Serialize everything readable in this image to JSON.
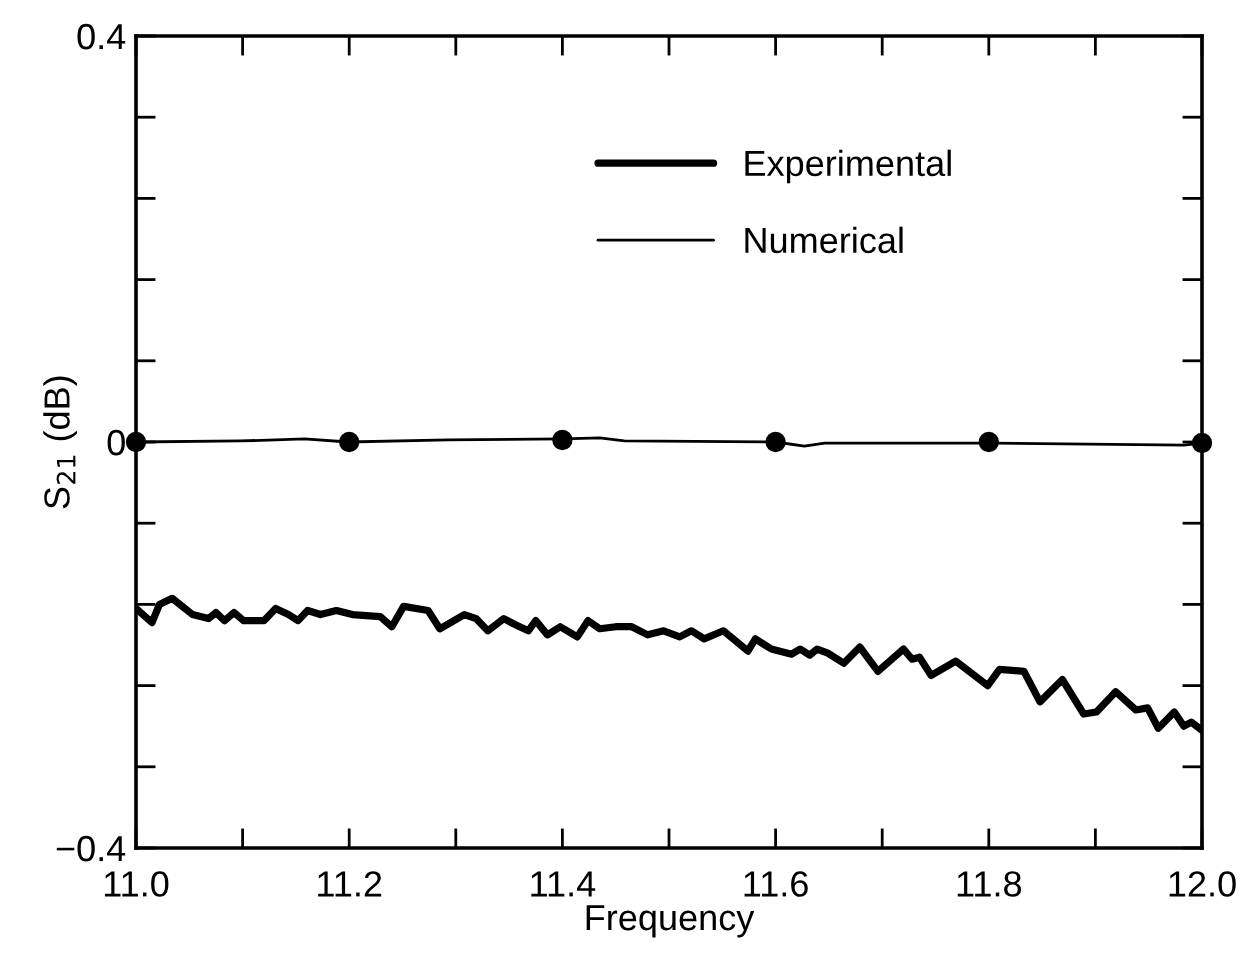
{
  "chart_data": {
    "type": "line",
    "xlabel": "Frequency",
    "ylabel": "S$_{21}$ (dB)",
    "xlim": [
      11.0,
      12.0
    ],
    "ylim": [
      -0.4,
      0.4
    ],
    "xticks": [
      {
        "value": 11.0,
        "label": "11.0"
      },
      {
        "value": 11.1,
        "label": null
      },
      {
        "value": 11.2,
        "label": "11.2"
      },
      {
        "value": 11.3,
        "label": null
      },
      {
        "value": 11.4,
        "label": "11.4"
      },
      {
        "value": 11.5,
        "label": null
      },
      {
        "value": 11.6,
        "label": "11.6"
      },
      {
        "value": 11.7,
        "label": null
      },
      {
        "value": 11.8,
        "label": "11.8"
      },
      {
        "value": 11.9,
        "label": null
      },
      {
        "value": 12.0,
        "label": "12.0"
      }
    ],
    "yticks": [
      {
        "value": -0.4,
        "label": "−0.4"
      },
      {
        "value": -0.32,
        "label": null
      },
      {
        "value": -0.24,
        "label": null
      },
      {
        "value": -0.16,
        "label": null
      },
      {
        "value": -0.08,
        "label": null
      },
      {
        "value": 0,
        "label": "0"
      },
      {
        "value": 0.08,
        "label": null
      },
      {
        "value": 0.16,
        "label": null
      },
      {
        "value": 0.24,
        "label": null
      },
      {
        "value": 0.32,
        "label": null
      },
      {
        "value": 0.4,
        "label": "0.4"
      }
    ],
    "grid": false,
    "legend": "top",
    "marker": "none",
    "line_style": "solid",
    "series": [
      {
        "name": "Experimental",
        "color": "#000000",
        "x": [
          11.0,
          11.015,
          11.022,
          11.034,
          11.053,
          11.068,
          11.075,
          11.083,
          11.092,
          11.101,
          11.12,
          11.131,
          11.143,
          11.152,
          11.161,
          11.173,
          11.188,
          11.203,
          11.229,
          11.24,
          11.251,
          11.274,
          11.285,
          11.308,
          11.319,
          11.33,
          11.345,
          11.356,
          11.368,
          11.375,
          11.386,
          11.398,
          11.414,
          11.424,
          11.435,
          11.45,
          11.465,
          11.48,
          11.495,
          11.51,
          11.521,
          11.533,
          11.551,
          11.574,
          11.581,
          11.596,
          11.615,
          11.623,
          11.632,
          11.639,
          11.649,
          11.664,
          11.679,
          11.696,
          11.72,
          11.728,
          11.735,
          11.746,
          11.769,
          11.799,
          11.81,
          11.833,
          11.848,
          11.869,
          11.889,
          11.901,
          11.919,
          11.938,
          11.949,
          11.959,
          11.974,
          11.983,
          11.99,
          12.0
        ],
        "values": [
          -0.164,
          -0.178,
          -0.16,
          -0.154,
          -0.17,
          -0.174,
          -0.168,
          -0.176,
          -0.168,
          -0.176,
          -0.176,
          -0.164,
          -0.17,
          -0.176,
          -0.166,
          -0.17,
          -0.166,
          -0.17,
          -0.172,
          -0.182,
          -0.162,
          -0.166,
          -0.184,
          -0.17,
          -0.174,
          -0.186,
          -0.174,
          -0.18,
          -0.186,
          -0.176,
          -0.19,
          -0.182,
          -0.192,
          -0.176,
          -0.184,
          -0.182,
          -0.182,
          -0.19,
          -0.186,
          -0.192,
          -0.186,
          -0.194,
          -0.186,
          -0.206,
          -0.194,
          -0.204,
          -0.209,
          -0.204,
          -0.21,
          -0.204,
          -0.208,
          -0.218,
          -0.202,
          -0.226,
          -0.204,
          -0.214,
          -0.212,
          -0.23,
          -0.216,
          -0.24,
          -0.224,
          -0.226,
          -0.256,
          -0.234,
          -0.268,
          -0.266,
          -0.246,
          -0.264,
          -0.262,
          -0.282,
          -0.266,
          -0.28,
          -0.276,
          -0.284
        ]
      },
      {
        "name": "Numerical",
        "color": "#000000",
        "x": [
          11.0,
          11.098,
          11.158,
          11.199,
          11.293,
          11.401,
          11.435,
          11.458,
          11.6,
          11.627,
          11.646,
          11.803,
          11.983,
          12.0
        ],
        "values": [
          0.0,
          0.001,
          0.003,
          0.0,
          0.002,
          0.003,
          0.004,
          0.001,
          0.0,
          -0.004,
          -0.001,
          -0.001,
          -0.003,
          -0.001
        ]
      },
      {
        "type": "scatter",
        "marker": "circle",
        "color": "#000000",
        "x": [
          11.0,
          11.2,
          11.4,
          11.6,
          11.8,
          12.0
        ],
        "values": [
          0.0,
          0.0,
          0.002,
          0.0,
          0.0,
          -0.001
        ]
      }
    ]
  }
}
